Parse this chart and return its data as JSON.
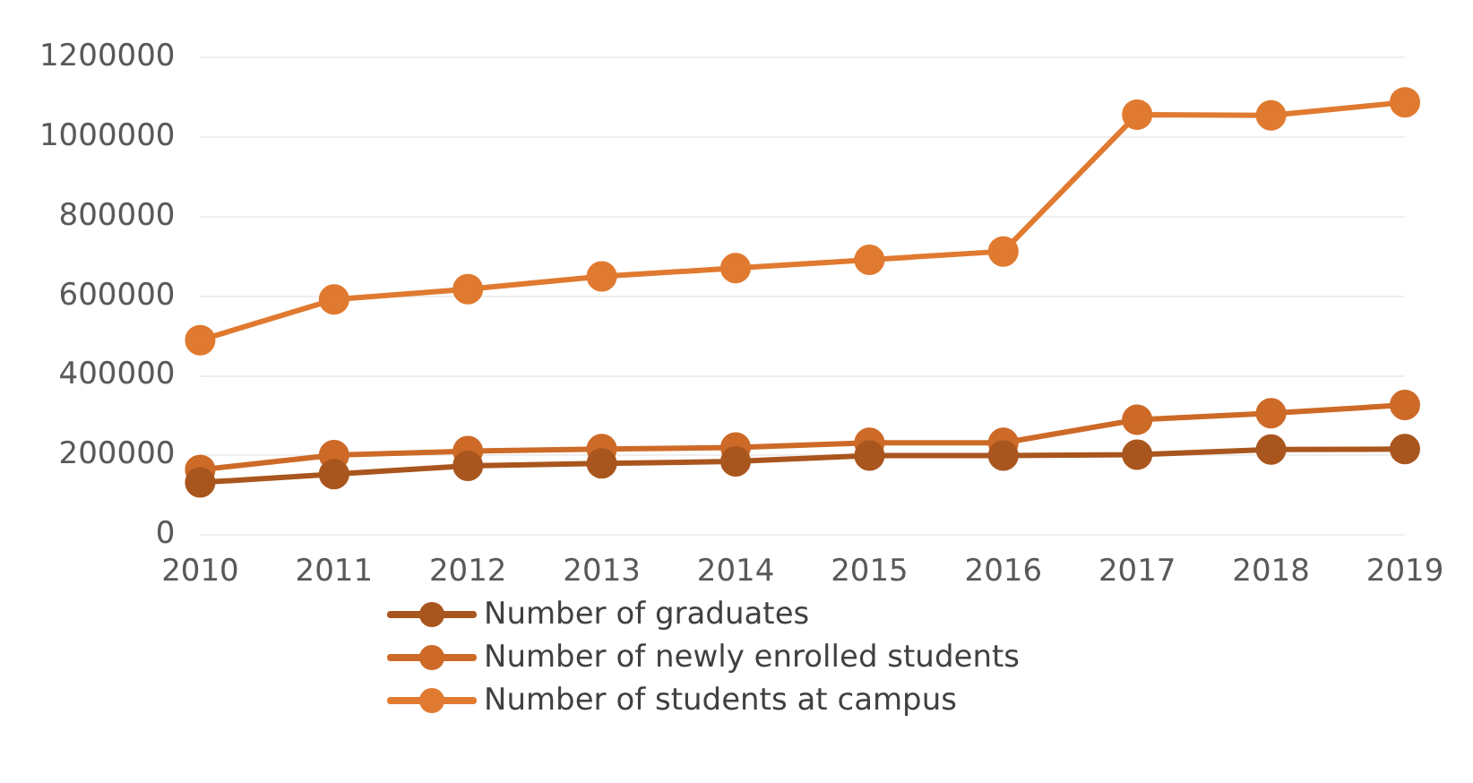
{
  "chart_data": {
    "type": "line",
    "categories": [
      "2010",
      "2011",
      "2012",
      "2013",
      "2014",
      "2015",
      "2016",
      "2017",
      "2018",
      "2019"
    ],
    "series": [
      {
        "name": "Number of graduates",
        "color": "#a9561e",
        "values": [
          132000,
          153000,
          174000,
          180000,
          185000,
          200000,
          200000,
          202000,
          215000,
          216000
        ]
      },
      {
        "name": "Number of newly enrolled students",
        "color": "#cd6a27",
        "values": [
          164000,
          201000,
          211000,
          216000,
          220000,
          232000,
          232000,
          290000,
          306000,
          327000
        ]
      },
      {
        "name": "Number of students at campus",
        "color": "#e07a30",
        "values": [
          490000,
          592000,
          618000,
          650000,
          671000,
          692000,
          713000,
          1057000,
          1055000,
          1088000
        ]
      }
    ],
    "ylim": [
      0,
      1200000
    ],
    "yticks": [
      0,
      200000,
      400000,
      600000,
      800000,
      1000000,
      1200000
    ],
    "grid": "y",
    "legend": "bottom",
    "marker": "circle",
    "line_style": "solid"
  }
}
